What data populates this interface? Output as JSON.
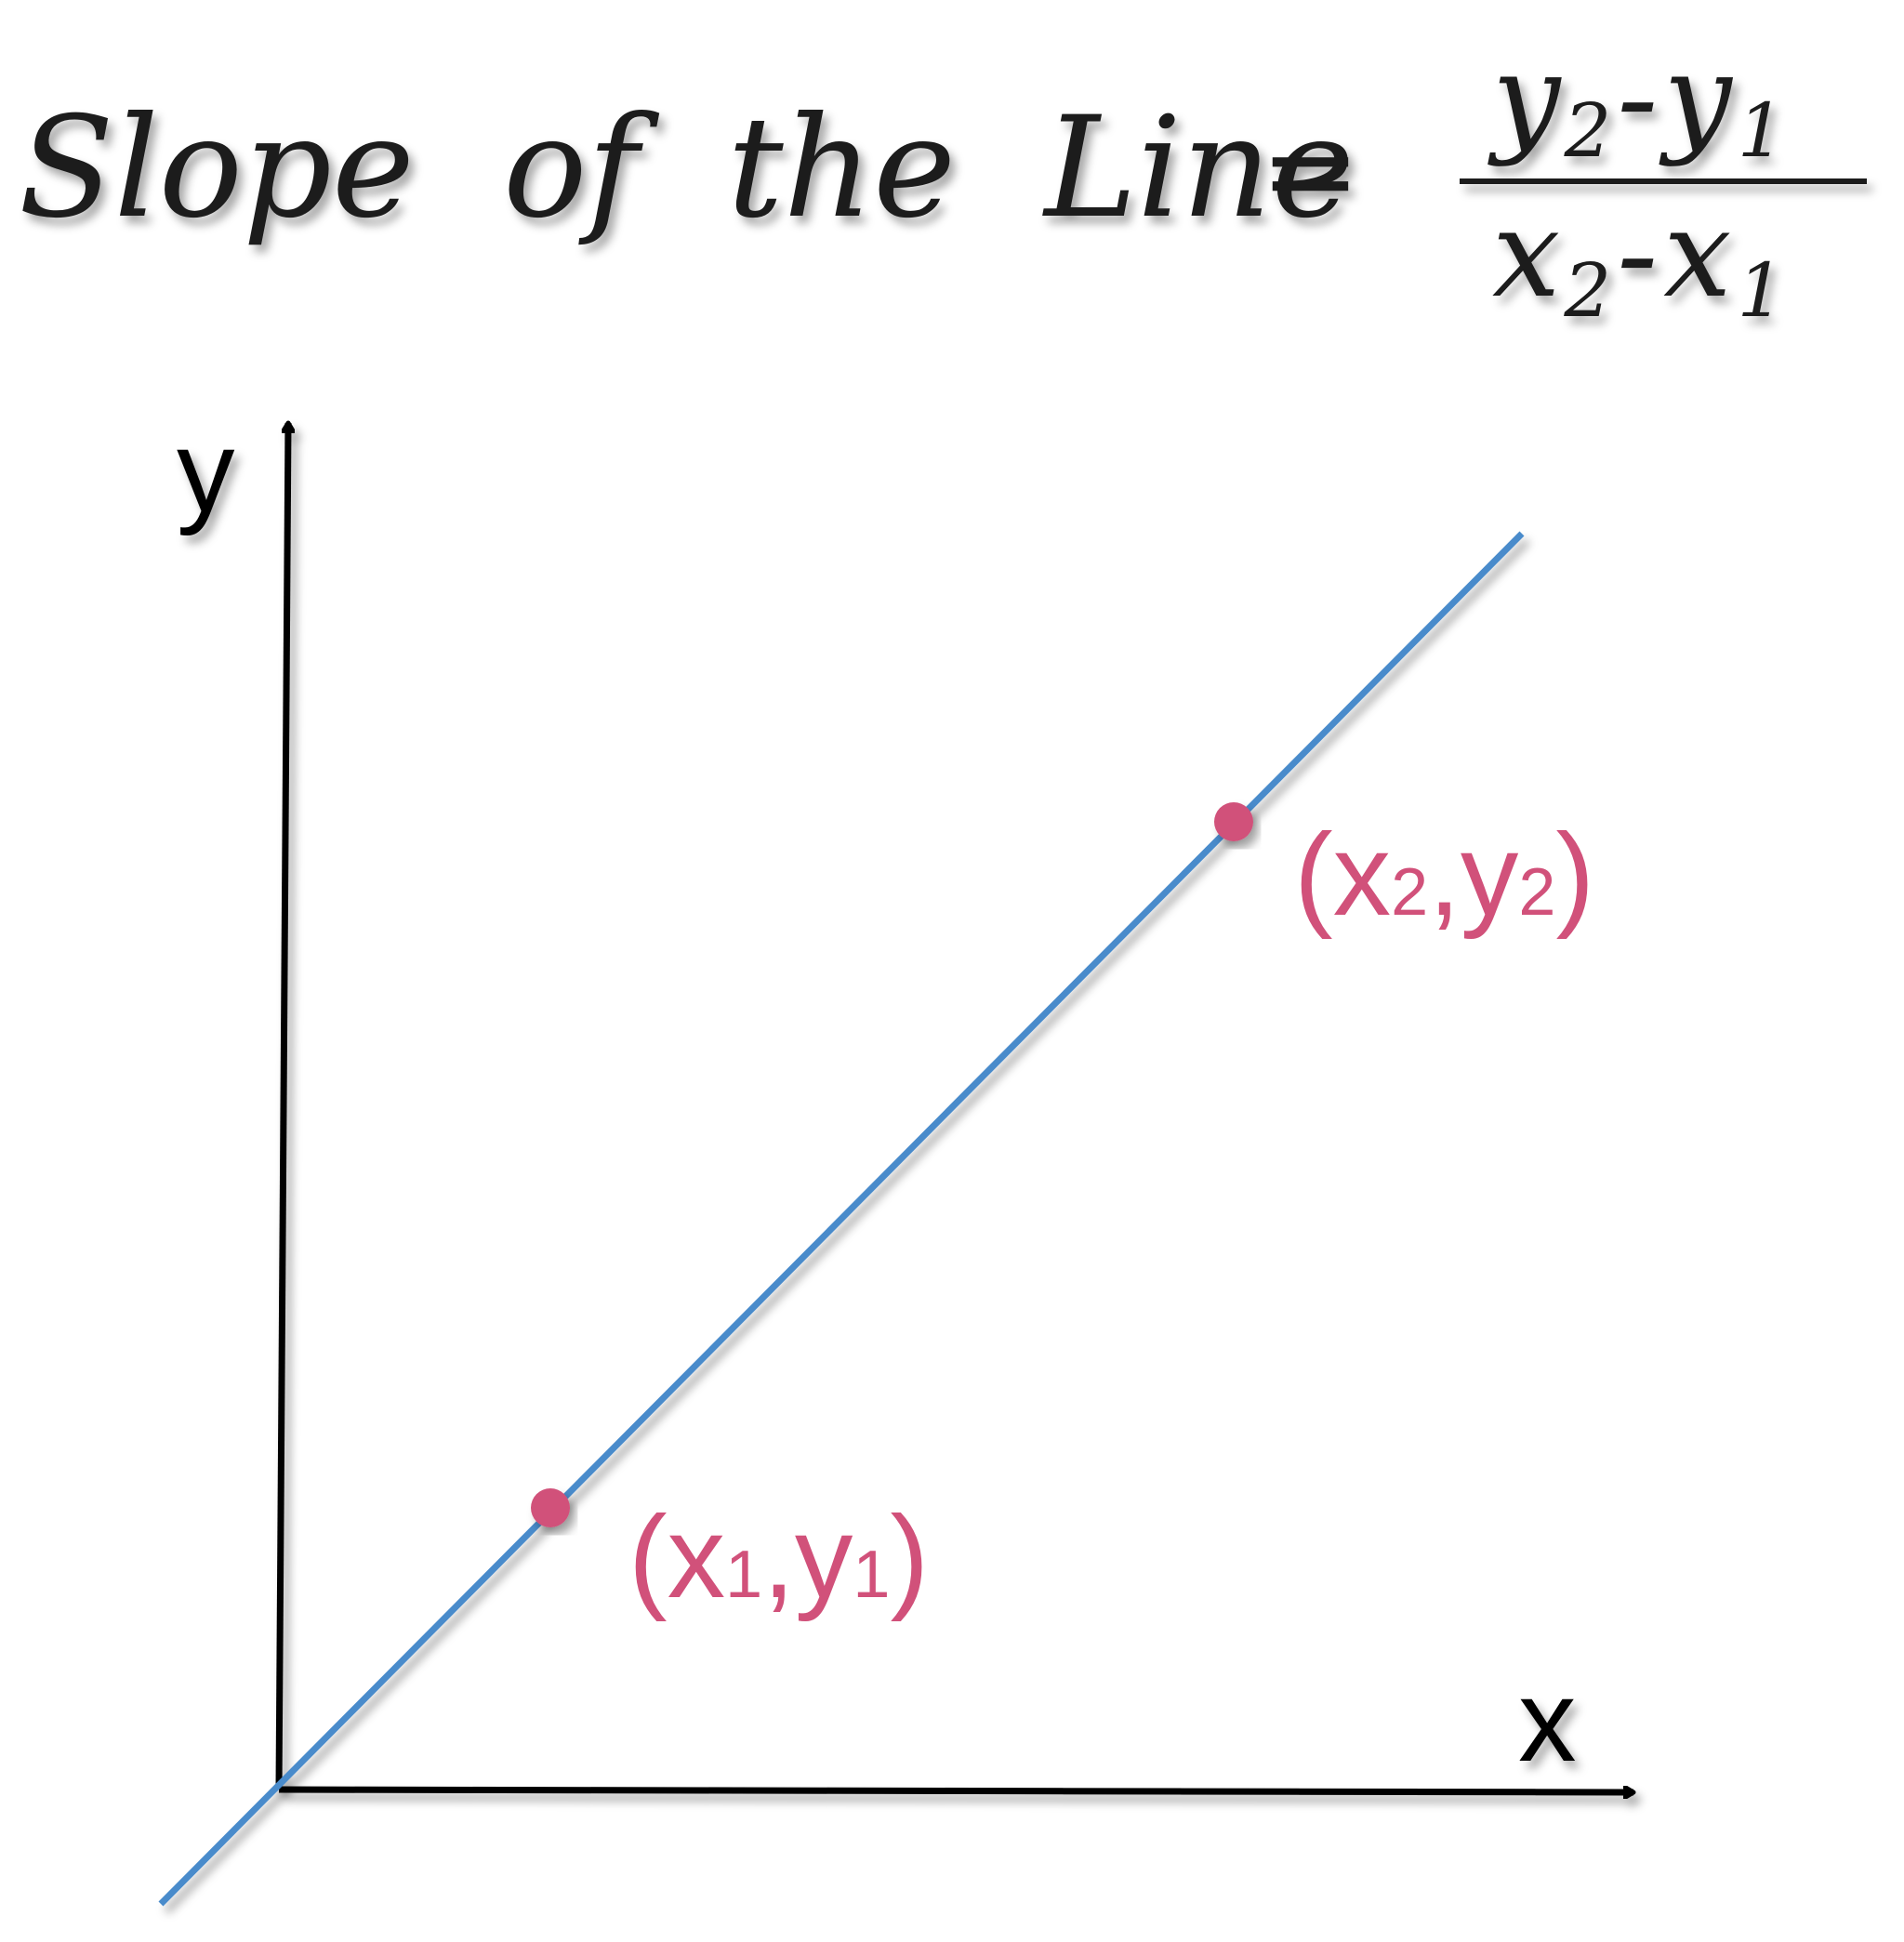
{
  "formula": {
    "lhs": "Slope  of  the  Line",
    "equals": "=",
    "numerator": {
      "var_a": "y",
      "sub_a": "2",
      "minus": "-",
      "var_b": "y",
      "sub_b": "1"
    },
    "denominator": {
      "var_a": "x",
      "sub_a": "2",
      "minus": "-",
      "var_b": "x",
      "sub_b": "1"
    }
  },
  "axes": {
    "y_label": "y",
    "x_label": "x"
  },
  "points": [
    {
      "open": "(",
      "var_x": "x",
      "sub_x": "1",
      "comma": ",",
      "var_y": "y",
      "sub_y": "1",
      "close": ")"
    },
    {
      "open": "(",
      "var_x": "x",
      "sub_x": "2",
      "comma": ",",
      "var_y": "y",
      "sub_y": "2",
      "close": ")"
    }
  ],
  "colors": {
    "line": "#4a8bcb",
    "point": "#d1517a",
    "axis": "#000000",
    "text": "#1c1c1c"
  }
}
